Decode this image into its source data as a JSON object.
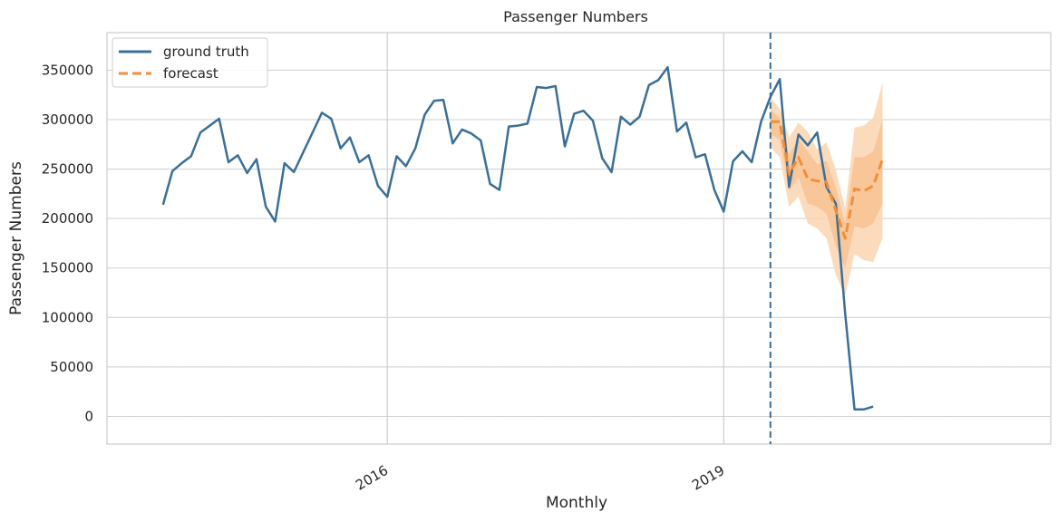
{
  "chart_data": {
    "type": "line",
    "title": "Passenger Numbers",
    "xlabel": "Monthly",
    "ylabel": "Passenger Numbers",
    "ylim": [
      -28000,
      388000
    ],
    "xlim": [
      "2013-07",
      "2021-12"
    ],
    "yticks": [
      0,
      50000,
      100000,
      150000,
      200000,
      250000,
      300000,
      350000
    ],
    "ytick_labels": [
      "0",
      "50000",
      "100000",
      "150000",
      "200000",
      "250000",
      "300000",
      "350000"
    ],
    "xticks": [
      "2016-01",
      "2019-01"
    ],
    "xtick_labels": [
      "2016",
      "2019"
    ],
    "grid": true,
    "legend_position": "top-left",
    "forecast_start": "2019-06",
    "series": [
      {
        "name": "ground truth",
        "color": "#3a6f98",
        "points": [
          [
            "2014-01",
            214000
          ],
          [
            "2014-02",
            248000
          ],
          [
            "2014-03",
            256000
          ],
          [
            "2014-04",
            263000
          ],
          [
            "2014-05",
            287000
          ],
          [
            "2014-06",
            294000
          ],
          [
            "2014-07",
            301000
          ],
          [
            "2014-08",
            257000
          ],
          [
            "2014-09",
            264000
          ],
          [
            "2014-10",
            246000
          ],
          [
            "2014-11",
            260000
          ],
          [
            "2014-12",
            212000
          ],
          [
            "2015-01",
            197000
          ],
          [
            "2015-02",
            256000
          ],
          [
            "2015-03",
            247000
          ],
          [
            "2015-04",
            267000
          ],
          [
            "2015-05",
            287000
          ],
          [
            "2015-06",
            307000
          ],
          [
            "2015-07",
            301000
          ],
          [
            "2015-08",
            271000
          ],
          [
            "2015-09",
            282000
          ],
          [
            "2015-10",
            257000
          ],
          [
            "2015-11",
            264000
          ],
          [
            "2015-12",
            233000
          ],
          [
            "2016-01",
            222000
          ],
          [
            "2016-02",
            263000
          ],
          [
            "2016-03",
            253000
          ],
          [
            "2016-04",
            271000
          ],
          [
            "2016-05",
            305000
          ],
          [
            "2016-06",
            319000
          ],
          [
            "2016-07",
            320000
          ],
          [
            "2016-08",
            276000
          ],
          [
            "2016-09",
            290000
          ],
          [
            "2016-10",
            286000
          ],
          [
            "2016-11",
            279000
          ],
          [
            "2016-12",
            235000
          ],
          [
            "2017-01",
            229000
          ],
          [
            "2017-02",
            293000
          ],
          [
            "2017-03",
            294000
          ],
          [
            "2017-04",
            296000
          ],
          [
            "2017-05",
            333000
          ],
          [
            "2017-06",
            332000
          ],
          [
            "2017-07",
            334000
          ],
          [
            "2017-08",
            273000
          ],
          [
            "2017-09",
            306000
          ],
          [
            "2017-10",
            309000
          ],
          [
            "2017-11",
            299000
          ],
          [
            "2017-12",
            261000
          ],
          [
            "2018-01",
            247000
          ],
          [
            "2018-02",
            303000
          ],
          [
            "2018-03",
            295000
          ],
          [
            "2018-04",
            303000
          ],
          [
            "2018-05",
            335000
          ],
          [
            "2018-06",
            340000
          ],
          [
            "2018-07",
            353000
          ],
          [
            "2018-08",
            288000
          ],
          [
            "2018-09",
            297000
          ],
          [
            "2018-10",
            262000
          ],
          [
            "2018-11",
            265000
          ],
          [
            "2018-12",
            229000
          ],
          [
            "2019-01",
            207000
          ],
          [
            "2019-02",
            258000
          ],
          [
            "2019-03",
            268000
          ],
          [
            "2019-04",
            257000
          ],
          [
            "2019-05",
            298000
          ],
          [
            "2019-06",
            323000
          ],
          [
            "2019-07",
            341000
          ],
          [
            "2019-08",
            232000
          ],
          [
            "2019-09",
            285000
          ],
          [
            "2019-10",
            274000
          ],
          [
            "2019-11",
            287000
          ],
          [
            "2019-12",
            232000
          ],
          [
            "2020-01",
            215000
          ],
          [
            "2020-02",
            104000
          ],
          [
            "2020-03",
            7000
          ],
          [
            "2020-04",
            7000
          ],
          [
            "2020-05",
            10000
          ]
        ]
      },
      {
        "name": "forecast",
        "color": "#f28e3a",
        "dashed": true,
        "points": [
          [
            "2019-06",
            298000
          ],
          [
            "2019-07",
            298000
          ],
          [
            "2019-08",
            245000
          ],
          [
            "2019-09",
            262000
          ],
          [
            "2019-10",
            240000
          ],
          [
            "2019-11",
            238000
          ],
          [
            "2019-12",
            237000
          ],
          [
            "2020-01",
            208000
          ],
          [
            "2020-02",
            180000
          ],
          [
            "2020-03",
            230000
          ],
          [
            "2020-04",
            228000
          ],
          [
            "2020-05",
            233000
          ],
          [
            "2020-06",
            260000
          ]
        ],
        "interval_outer": {
          "color": "#fbd5b2",
          "upper": [
            322000,
            311000,
            282000,
            297000,
            288000,
            270000,
            277000,
            250000,
            210000,
            292000,
            294000,
            302000,
            338000
          ],
          "lower": [
            272000,
            262000,
            212000,
            222000,
            195000,
            190000,
            180000,
            143000,
            122000,
            164000,
            158000,
            156000,
            180000
          ]
        },
        "interval_inner": {
          "color": "#f7c293",
          "upper": [
            310000,
            302000,
            265000,
            280000,
            268000,
            255000,
            258000,
            232000,
            195000,
            262000,
            262000,
            268000,
            300000
          ],
          "lower": [
            285000,
            280000,
            228000,
            242000,
            215000,
            212000,
            205000,
            172000,
            150000,
            192000,
            190000,
            195000,
            215000
          ]
        }
      }
    ]
  }
}
